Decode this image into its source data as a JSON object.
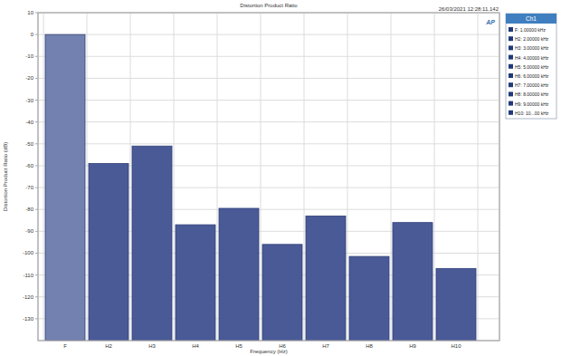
{
  "chart_data": {
    "type": "bar",
    "title": "Distortion Product Ratio",
    "timestamp": "26/03/2021 12:28:11.142",
    "logo_text": "AP",
    "x_label": "Frequency (Hz)",
    "y_label": "Distortion Product Ratio (dB)",
    "categories": [
      "F",
      "H2",
      "H3",
      "H4",
      "H5",
      "H6",
      "H7",
      "H8",
      "H9",
      "H10"
    ],
    "values": [
      0,
      -59,
      -51,
      -87,
      -79.5,
      -96,
      -83,
      -101.5,
      -86,
      -107
    ],
    "colors": [
      "#7381b0",
      "#4a5a97",
      "#4a5a97",
      "#4a5a97",
      "#4a5a97",
      "#4a5a97",
      "#4a5a97",
      "#4a5a97",
      "#4a5a97",
      "#4a5a97"
    ],
    "ylim": [
      -140,
      10
    ],
    "yticks": [
      10,
      0,
      -10,
      -20,
      -30,
      -40,
      -50,
      -60,
      -70,
      -80,
      -90,
      -100,
      -110,
      -120,
      -130
    ],
    "grid": true,
    "legend_title": "Ch1",
    "legend_entries": [
      "F: 1.00000 kHz",
      "H2: 2.00000 kHz",
      "H3: 3.00000 kHz",
      "H4: 4.00000 kHz",
      "H5: 5.00000 kHz",
      "H6: 6.00000 kHz",
      "H7: 7.00000 kHz",
      "H8: 8.00000 kHz",
      "H9: 9.00000 kHz",
      "H10: 10...00 kHz"
    ]
  }
}
